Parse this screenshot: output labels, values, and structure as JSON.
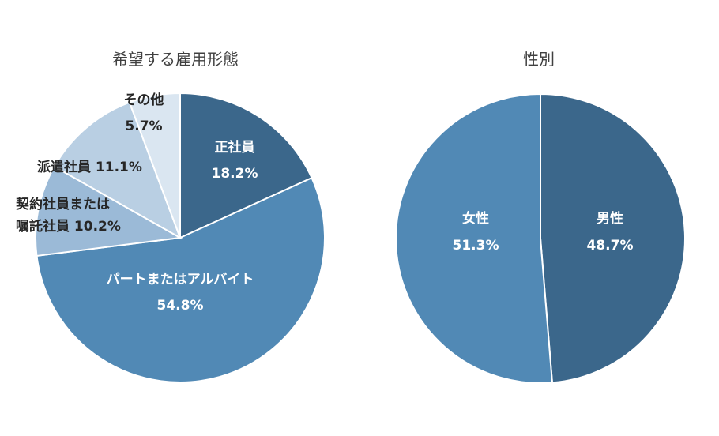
{
  "chart_data": [
    {
      "type": "pie",
      "title": "希望する雇用形態",
      "slices": [
        {
          "label": "正社員",
          "value": 18.2,
          "value_label": "18.2%",
          "color": "#3b678b",
          "text_color": "#ffffff"
        },
        {
          "label": "パートまたはアルバイト",
          "value": 54.8,
          "value_label": "54.8%",
          "color": "#5189b5",
          "text_color": "#ffffff"
        },
        {
          "label": "契約社員または",
          "label2": "嘱託社員",
          "value": 10.2,
          "value_label": "10.2%",
          "color": "#9bbad7",
          "text_color": "#262626"
        },
        {
          "label": "派遣社員",
          "value": 11.1,
          "value_label": "11.1%",
          "color": "#b9cfe3",
          "text_color": "#262626"
        },
        {
          "label": "その他",
          "value": 5.7,
          "value_label": "5.7%",
          "color": "#dae6f1",
          "text_color": "#262626"
        }
      ]
    },
    {
      "type": "pie",
      "title": "性別",
      "slices": [
        {
          "label": "男性",
          "value": 48.7,
          "value_label": "48.7%",
          "color": "#3b678b",
          "text_color": "#ffffff"
        },
        {
          "label": "女性",
          "value": 51.3,
          "value_label": "51.3%",
          "color": "#5189b5",
          "text_color": "#ffffff"
        }
      ]
    }
  ]
}
